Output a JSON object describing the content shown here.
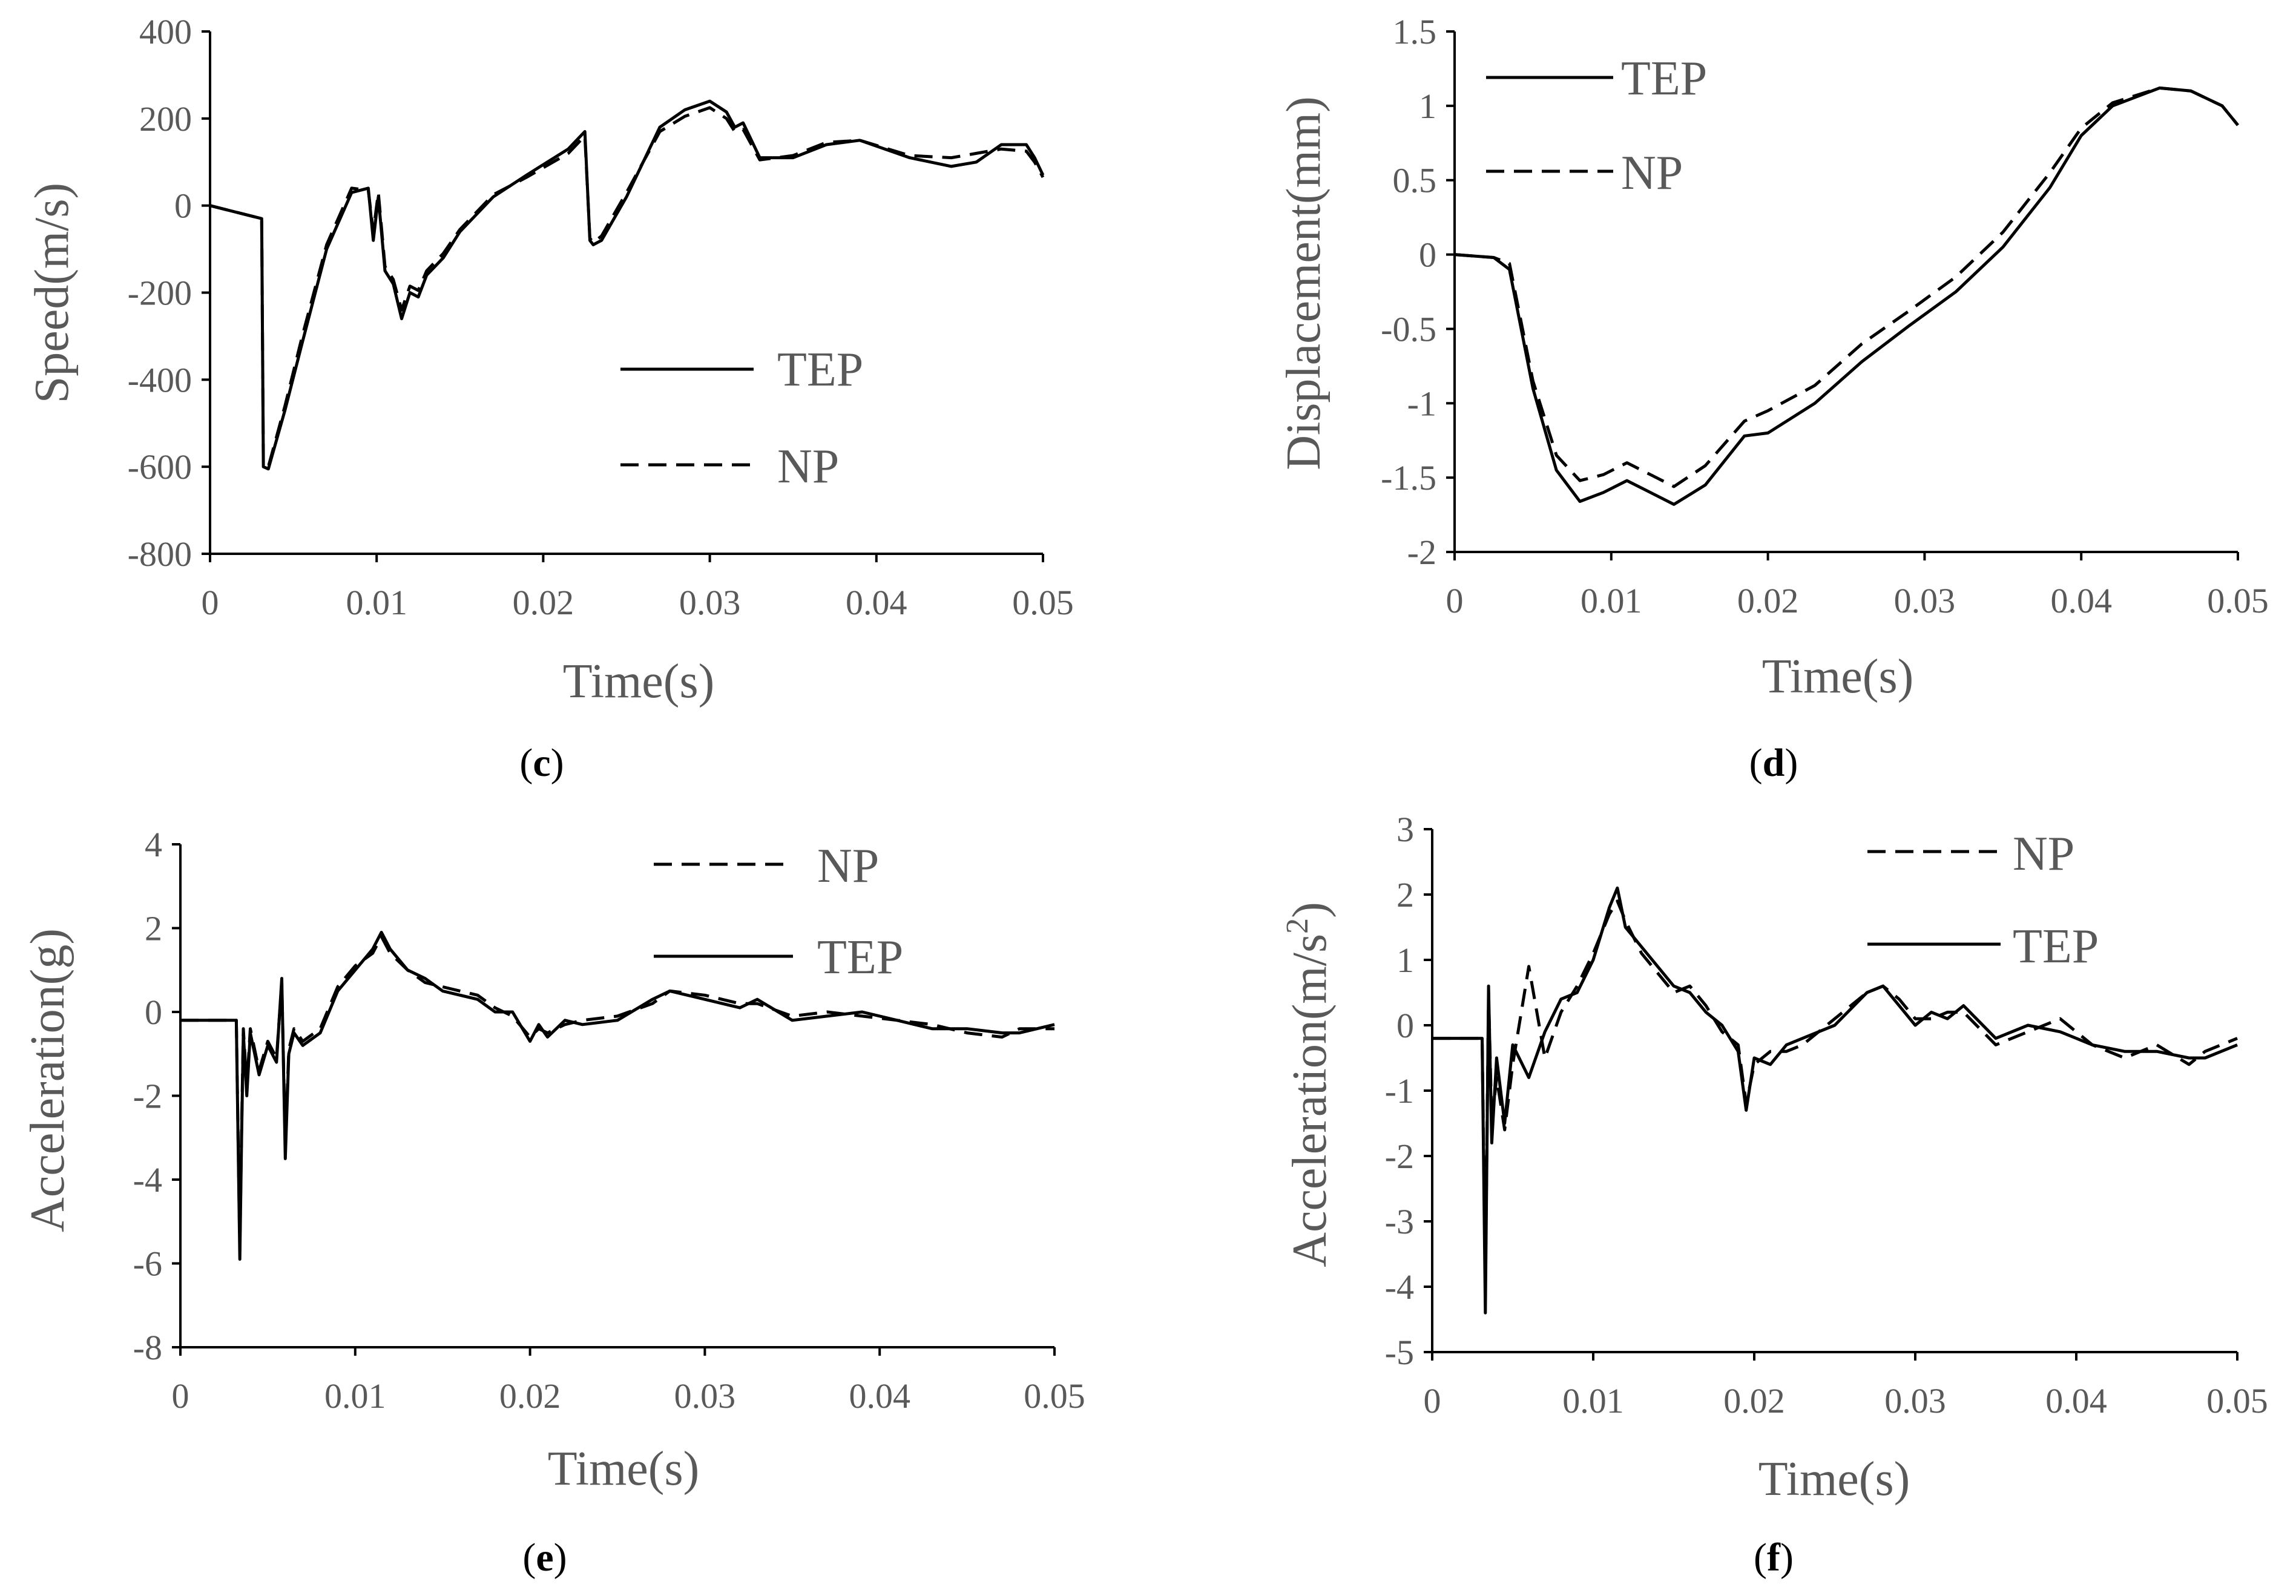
{
  "chart_data": [
    {
      "panel": "c",
      "type": "line",
      "caption_open": "(",
      "caption_letter": "c",
      "caption_close": ")",
      "xlabel": "Time(s)",
      "ylabel": "Speed(m/s)",
      "xlim": [
        0,
        0.05
      ],
      "ylim": [
        -800,
        400
      ],
      "xticks": [
        0,
        0.01,
        0.02,
        0.03,
        0.04,
        0.05
      ],
      "yticks": [
        -800,
        -600,
        -400,
        -200,
        0,
        200,
        400
      ],
      "xtick_labels": [
        "0",
        "0.01",
        "0.02",
        "0.03",
        "0.04",
        "0.05"
      ],
      "ytick_labels": [
        "-800",
        "-600",
        "-400",
        "-200",
        "0",
        "200",
        "400"
      ],
      "legend": [
        {
          "name": "TEP",
          "style": "solid"
        },
        {
          "name": "NP",
          "style": "dashed"
        }
      ],
      "legend_position": "middle-right",
      "series": [
        {
          "name": "TEP",
          "style": "solid",
          "x": [
            0,
            0.0031,
            0.0032,
            0.0035,
            0.0045,
            0.0055,
            0.007,
            0.0085,
            0.0095,
            0.0098,
            0.0101,
            0.0105,
            0.011,
            0.0115,
            0.012,
            0.0125,
            0.013,
            0.014,
            0.015,
            0.017,
            0.019,
            0.0215,
            0.0225,
            0.0228,
            0.023,
            0.0235,
            0.025,
            0.027,
            0.0285,
            0.03,
            0.031,
            0.0315,
            0.032,
            0.033,
            0.035,
            0.037,
            0.039,
            0.042,
            0.0445,
            0.046,
            0.0475,
            0.049,
            0.0495,
            0.05
          ],
          "y": [
            0,
            -30,
            -600,
            -605,
            -470,
            -320,
            -100,
            30,
            40,
            -80,
            20,
            -150,
            -180,
            -260,
            -200,
            -210,
            -160,
            -120,
            -60,
            20,
            70,
            130,
            170,
            -80,
            -90,
            -80,
            20,
            180,
            220,
            240,
            215,
            180,
            190,
            110,
            110,
            140,
            150,
            110,
            90,
            100,
            140,
            140,
            110,
            70
          ]
        },
        {
          "name": "NP",
          "style": "dashed",
          "x": [
            0,
            0.0031,
            0.0032,
            0.0035,
            0.0045,
            0.0055,
            0.007,
            0.0085,
            0.0095,
            0.0098,
            0.0101,
            0.0105,
            0.011,
            0.0115,
            0.012,
            0.0125,
            0.013,
            0.014,
            0.015,
            0.017,
            0.019,
            0.0215,
            0.0225,
            0.0228,
            0.023,
            0.0235,
            0.025,
            0.027,
            0.0285,
            0.03,
            0.031,
            0.0315,
            0.032,
            0.033,
            0.035,
            0.037,
            0.039,
            0.042,
            0.0445,
            0.046,
            0.0475,
            0.049,
            0.0495,
            0.05
          ],
          "y": [
            0,
            -30,
            -595,
            -600,
            -460,
            -305,
            -90,
            40,
            35,
            -60,
            30,
            -140,
            -170,
            -240,
            -185,
            -195,
            -150,
            -110,
            -55,
            25,
            65,
            120,
            160,
            -75,
            -85,
            -70,
            30,
            170,
            205,
            225,
            200,
            170,
            175,
            105,
            115,
            145,
            150,
            115,
            110,
            120,
            130,
            125,
            100,
            65
          ]
        }
      ]
    },
    {
      "panel": "d",
      "type": "line",
      "caption_open": "(",
      "caption_letter": "d",
      "caption_close": ")",
      "xlabel": "Time(s)",
      "ylabel": "Displacement(mm)",
      "xlim": [
        0,
        0.05
      ],
      "ylim": [
        -2,
        1.5
      ],
      "xticks": [
        0,
        0.01,
        0.02,
        0.03,
        0.04,
        0.05
      ],
      "yticks": [
        -2,
        -1.5,
        -1,
        -0.5,
        0,
        0.5,
        1,
        1.5
      ],
      "xtick_labels": [
        "0",
        "0.01",
        "0.02",
        "0.03",
        "0.04",
        "0.05"
      ],
      "ytick_labels": [
        "-2",
        "-1.5",
        "-1",
        "-0.5",
        "0",
        "0.5",
        "1",
        "1.5"
      ],
      "legend": [
        {
          "name": "TEP",
          "style": "solid"
        },
        {
          "name": "NP",
          "style": "dashed"
        }
      ],
      "legend_position": "top-left",
      "series": [
        {
          "name": "TEP",
          "style": "solid",
          "x": [
            0,
            0.0025,
            0.0035,
            0.005,
            0.0065,
            0.008,
            0.0095,
            0.011,
            0.0125,
            0.014,
            0.016,
            0.0185,
            0.02,
            0.023,
            0.026,
            0.029,
            0.032,
            0.035,
            0.038,
            0.04,
            0.042,
            0.045,
            0.047,
            0.049,
            0.05
          ],
          "y": [
            0,
            -0.02,
            -0.1,
            -0.9,
            -1.45,
            -1.66,
            -1.6,
            -1.52,
            -1.6,
            -1.68,
            -1.55,
            -1.22,
            -1.2,
            -1.0,
            -0.72,
            -0.48,
            -0.25,
            0.05,
            0.45,
            0.8,
            1.0,
            1.12,
            1.1,
            1.0,
            0.87
          ]
        },
        {
          "name": "NP",
          "style": "dashed",
          "x": [
            0,
            0.0025,
            0.0035,
            0.005,
            0.0065,
            0.008,
            0.0095,
            0.011,
            0.0125,
            0.014,
            0.016,
            0.0185,
            0.02,
            0.023,
            0.026,
            0.029,
            0.032,
            0.035,
            0.038,
            0.04,
            0.042,
            0.045,
            0.047,
            0.049,
            0.05
          ],
          "y": [
            0,
            -0.02,
            -0.06,
            -0.85,
            -1.35,
            -1.52,
            -1.48,
            -1.4,
            -1.48,
            -1.56,
            -1.42,
            -1.12,
            -1.05,
            -0.88,
            -0.6,
            -0.38,
            -0.15,
            0.15,
            0.55,
            0.85,
            1.02,
            1.12,
            1.1,
            1.0,
            0.87
          ]
        }
      ]
    },
    {
      "panel": "e",
      "type": "line",
      "caption_open": "(",
      "caption_letter": "e",
      "caption_close": ")",
      "xlabel": "Time(s)",
      "ylabel": "Acceleration(g)",
      "xlim": [
        0,
        0.05
      ],
      "ylim": [
        -8,
        4
      ],
      "xticks": [
        0,
        0.01,
        0.02,
        0.03,
        0.04,
        0.05
      ],
      "yticks": [
        -8,
        -6,
        -4,
        -2,
        0,
        2,
        4
      ],
      "xtick_labels": [
        "0",
        "0.01",
        "0.02",
        "0.03",
        "0.04",
        "0.05"
      ],
      "ytick_labels": [
        "-8",
        "-6",
        "-4",
        "-2",
        "0",
        "2",
        "4"
      ],
      "legend": [
        {
          "name": "NP",
          "style": "dashed"
        },
        {
          "name": "TEP",
          "style": "solid"
        }
      ],
      "legend_position": "top-right",
      "series": [
        {
          "name": "TEP",
          "style": "solid",
          "x": [
            0,
            0.0032,
            0.0034,
            0.0035,
            0.0036,
            0.0038,
            0.004,
            0.0045,
            0.005,
            0.0055,
            0.0058,
            0.006,
            0.0062,
            0.0065,
            0.007,
            0.008,
            0.009,
            0.01,
            0.011,
            0.0115,
            0.012,
            0.013,
            0.014,
            0.015,
            0.016,
            0.017,
            0.018,
            0.019,
            0.02,
            0.0205,
            0.021,
            0.022,
            0.023,
            0.025,
            0.027,
            0.028,
            0.03,
            0.032,
            0.033,
            0.035,
            0.037,
            0.039,
            0.041,
            0.043,
            0.045,
            0.047,
            0.048,
            0.05
          ],
          "y": [
            -0.2,
            -0.2,
            -5.9,
            -3.0,
            -0.5,
            -2.0,
            -0.5,
            -1.5,
            -0.8,
            -1.2,
            0.8,
            -3.5,
            -1.0,
            -0.5,
            -0.8,
            -0.5,
            0.5,
            1.0,
            1.5,
            1.9,
            1.5,
            1.0,
            0.8,
            0.5,
            0.4,
            0.3,
            0.0,
            0.0,
            -0.7,
            -0.3,
            -0.6,
            -0.2,
            -0.3,
            -0.2,
            0.3,
            0.5,
            0.3,
            0.1,
            0.3,
            -0.2,
            -0.1,
            0.0,
            -0.2,
            -0.4,
            -0.4,
            -0.5,
            -0.5,
            -0.3
          ]
        },
        {
          "name": "NP",
          "style": "dashed",
          "x": [
            0,
            0.0032,
            0.0034,
            0.0035,
            0.0036,
            0.0038,
            0.004,
            0.0045,
            0.005,
            0.0055,
            0.0058,
            0.006,
            0.0062,
            0.0065,
            0.007,
            0.008,
            0.009,
            0.01,
            0.011,
            0.0115,
            0.012,
            0.013,
            0.014,
            0.015,
            0.016,
            0.017,
            0.018,
            0.019,
            0.02,
            0.0205,
            0.021,
            0.022,
            0.023,
            0.025,
            0.027,
            0.028,
            0.03,
            0.032,
            0.033,
            0.035,
            0.037,
            0.039,
            0.041,
            0.043,
            0.045,
            0.047,
            0.048,
            0.05
          ],
          "y": [
            -0.2,
            -0.2,
            -5.7,
            -2.8,
            -0.4,
            -1.8,
            -0.4,
            -1.4,
            -0.7,
            -1.1,
            0.7,
            -3.2,
            -0.9,
            -0.4,
            -0.7,
            -0.4,
            0.6,
            1.1,
            1.4,
            1.8,
            1.4,
            1.0,
            0.7,
            0.6,
            0.5,
            0.4,
            0.1,
            -0.1,
            -0.6,
            -0.4,
            -0.5,
            -0.3,
            -0.2,
            -0.1,
            0.2,
            0.5,
            0.4,
            0.2,
            0.2,
            -0.1,
            0.0,
            -0.1,
            -0.2,
            -0.3,
            -0.5,
            -0.6,
            -0.4,
            -0.4
          ]
        }
      ]
    },
    {
      "panel": "f",
      "type": "line",
      "caption_open": "(",
      "caption_letter": "f",
      "caption_close": ")",
      "xlabel": "Time(s)",
      "ylabel_main": "Acceleration(m/s",
      "ylabel_sup": "2",
      "ylabel_end": ")",
      "xlim": [
        0,
        0.05
      ],
      "ylim": [
        -5,
        3
      ],
      "xticks": [
        0,
        0.01,
        0.02,
        0.03,
        0.04,
        0.05
      ],
      "yticks": [
        -5,
        -4,
        -3,
        -2,
        -1,
        0,
        1,
        2,
        3
      ],
      "xtick_labels": [
        "0",
        "0.01",
        "0.02",
        "0.03",
        "0.04",
        "0.05"
      ],
      "ytick_labels": [
        "-5",
        "-4",
        "-3",
        "-2",
        "-1",
        "0",
        "1",
        "2",
        "3"
      ],
      "legend": [
        {
          "name": "NP",
          "style": "dashed"
        },
        {
          "name": "TEP",
          "style": "solid"
        }
      ],
      "legend_position": "top-right",
      "series": [
        {
          "name": "TEP",
          "style": "solid",
          "x": [
            0,
            0.0031,
            0.0033,
            0.0035,
            0.0037,
            0.004,
            0.0045,
            0.005,
            0.006,
            0.007,
            0.008,
            0.009,
            0.01,
            0.011,
            0.0115,
            0.012,
            0.013,
            0.014,
            0.015,
            0.016,
            0.017,
            0.018,
            0.019,
            0.0195,
            0.02,
            0.021,
            0.022,
            0.023,
            0.025,
            0.027,
            0.028,
            0.029,
            0.03,
            0.031,
            0.032,
            0.033,
            0.035,
            0.037,
            0.039,
            0.041,
            0.043,
            0.045,
            0.047,
            0.048,
            0.05
          ],
          "y": [
            -0.2,
            -0.2,
            -4.4,
            0.6,
            -1.8,
            -0.5,
            -1.5,
            -0.3,
            -0.8,
            -0.1,
            0.4,
            0.5,
            1.0,
            1.8,
            2.1,
            1.5,
            1.2,
            0.9,
            0.6,
            0.5,
            0.2,
            0.0,
            -0.4,
            -1.3,
            -0.5,
            -0.6,
            -0.3,
            -0.2,
            0.0,
            0.5,
            0.6,
            0.3,
            0.0,
            0.2,
            0.1,
            0.3,
            -0.2,
            0.0,
            -0.1,
            -0.3,
            -0.4,
            -0.4,
            -0.5,
            -0.5,
            -0.3
          ]
        },
        {
          "name": "NP",
          "style": "dashed",
          "x": [
            0,
            0.0031,
            0.0033,
            0.0035,
            0.0037,
            0.004,
            0.0045,
            0.005,
            0.006,
            0.007,
            0.008,
            0.009,
            0.01,
            0.011,
            0.0115,
            0.012,
            0.013,
            0.014,
            0.015,
            0.016,
            0.017,
            0.018,
            0.019,
            0.0195,
            0.02,
            0.021,
            0.022,
            0.023,
            0.025,
            0.027,
            0.028,
            0.029,
            0.03,
            0.031,
            0.032,
            0.033,
            0.035,
            0.037,
            0.039,
            0.041,
            0.043,
            0.045,
            0.047,
            0.048,
            0.05
          ],
          "y": [
            -0.2,
            -0.2,
            -4.0,
            0.5,
            -1.5,
            -0.8,
            -1.6,
            -0.6,
            0.9,
            -0.5,
            0.2,
            0.6,
            1.1,
            1.7,
            1.9,
            1.6,
            1.1,
            0.8,
            0.5,
            0.6,
            0.3,
            -0.1,
            -0.3,
            -1.2,
            -0.6,
            -0.4,
            -0.4,
            -0.3,
            0.1,
            0.5,
            0.6,
            0.4,
            0.1,
            0.1,
            0.2,
            0.2,
            -0.3,
            -0.1,
            0.1,
            -0.3,
            -0.5,
            -0.3,
            -0.6,
            -0.4,
            -0.2
          ]
        }
      ]
    }
  ]
}
